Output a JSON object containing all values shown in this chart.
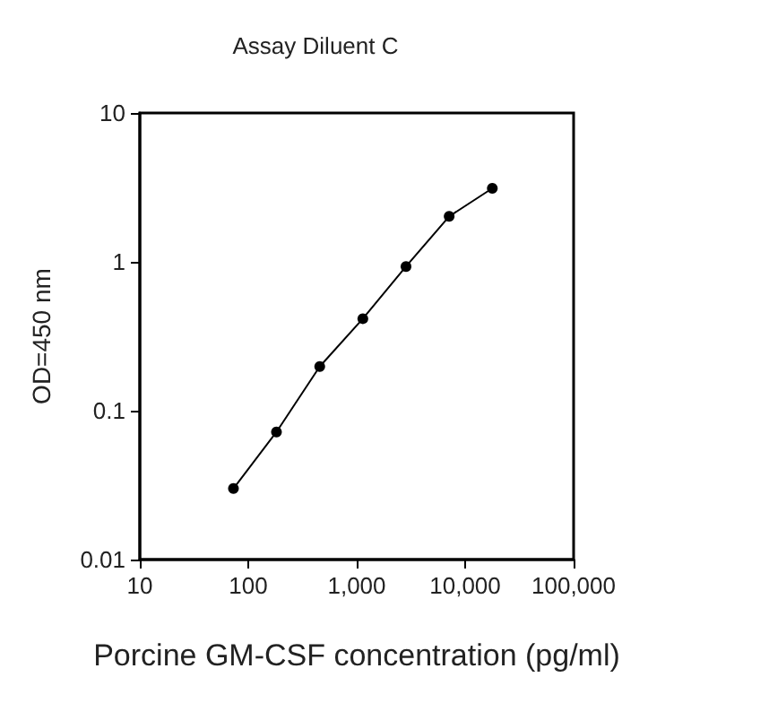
{
  "chart_data": {
    "type": "line",
    "title": "Assay Diluent C",
    "xlabel": "Porcine GM-CSF concentration (pg/ml)",
    "ylabel": "OD=450 nm",
    "x": [
      73,
      182,
      456,
      1139,
      2848,
      7120,
      17800
    ],
    "series": [
      {
        "color": "#000000",
        "values": [
          0.03,
          0.072,
          0.198,
          0.415,
          0.93,
          2.02,
          3.12
        ]
      }
    ],
    "xlim": [
      10,
      100000
    ],
    "xticks": [
      10,
      100,
      {
        "value": 1000,
        "label": "1,000"
      },
      {
        "value": 10000,
        "label": "10,000"
      },
      {
        "value": 100000,
        "label": "100,000"
      }
    ],
    "ylim": [
      0.01,
      10
    ],
    "yticks": [
      0.01,
      0.1,
      1,
      10
    ],
    "log": "xy",
    "grid": false,
    "marker": "circle",
    "line_style": "solid"
  }
}
